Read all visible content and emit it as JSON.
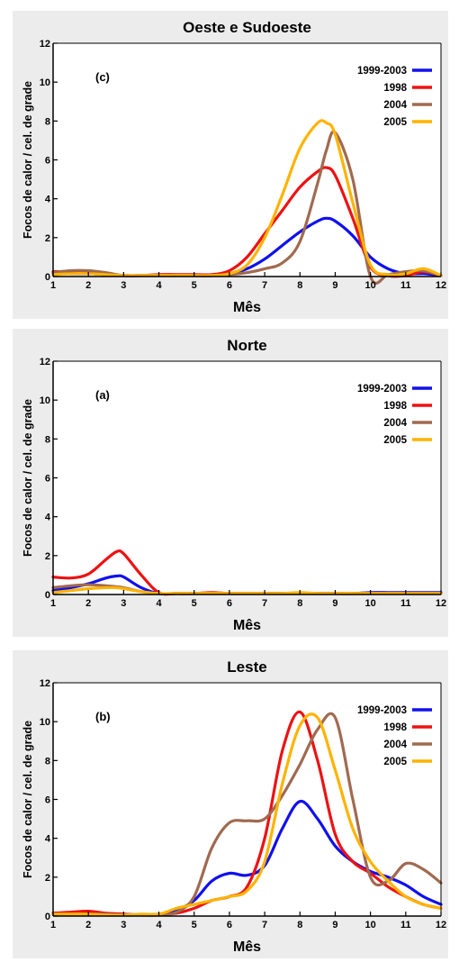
{
  "colors": {
    "1999-2003": "#1010ee",
    "1998": "#ee1111",
    "2004": "#a06a50",
    "2005": "#ffb300"
  },
  "chart_data": [
    {
      "type": "line",
      "title": "Oeste e Sudoeste",
      "panel_label": "(c)",
      "xlabel": "Mês",
      "ylabel": "Focos de calor / cel. de grade",
      "xlim": [
        1,
        12
      ],
      "ylim": [
        0,
        12
      ],
      "xticks": [
        1,
        2,
        3,
        4,
        5,
        6,
        7,
        8,
        9,
        10,
        11,
        12
      ],
      "yticks": [
        0,
        2,
        4,
        6,
        8,
        10,
        12
      ],
      "grid": false,
      "legend_position": "top-right",
      "x": [
        1,
        1.5,
        2,
        2.5,
        3,
        3.5,
        4,
        4.5,
        5,
        5.5,
        6,
        6.5,
        7,
        7.5,
        8,
        8.5,
        8.75,
        9,
        9.5,
        10,
        10.5,
        11,
        11.5,
        12
      ],
      "series": [
        {
          "name": "1999-2003",
          "values": [
            0.15,
            0.15,
            0.15,
            0.1,
            0.05,
            0.05,
            0.05,
            0.05,
            0.05,
            0.05,
            0.15,
            0.4,
            0.9,
            1.6,
            2.3,
            2.85,
            3.0,
            2.85,
            2.1,
            1.0,
            0.4,
            0.15,
            0.15,
            0.05
          ]
        },
        {
          "name": "1998",
          "values": [
            0.25,
            0.25,
            0.2,
            0.1,
            0.05,
            0.05,
            0.1,
            0.1,
            0.1,
            0.1,
            0.3,
            1.0,
            2.2,
            3.4,
            4.6,
            5.4,
            5.6,
            5.2,
            3.0,
            0.5,
            0.05,
            0.05,
            0.25,
            0.05
          ]
        },
        {
          "name": "2004",
          "values": [
            0.2,
            0.3,
            0.3,
            0.2,
            0.05,
            0.05,
            0.05,
            0.05,
            0.05,
            0.05,
            0.1,
            0.2,
            0.4,
            0.7,
            1.8,
            4.8,
            6.5,
            7.4,
            5.0,
            0.0,
            0.1,
            0.25,
            0.3,
            0.05
          ]
        },
        {
          "name": "2005",
          "values": [
            0.1,
            0.15,
            0.15,
            0.1,
            0.05,
            0.05,
            0.05,
            0.05,
            0.05,
            0.05,
            0.15,
            0.6,
            2.0,
            4.2,
            6.6,
            7.9,
            7.9,
            7.3,
            3.8,
            0.6,
            0.1,
            0.15,
            0.4,
            0.05
          ]
        }
      ]
    },
    {
      "type": "line",
      "title": "Norte",
      "panel_label": "(a)",
      "xlabel": "Mês",
      "ylabel": "Focos de calor / cel. de grade",
      "xlim": [
        1,
        12
      ],
      "ylim": [
        0,
        12
      ],
      "xticks": [
        1,
        2,
        3,
        4,
        5,
        6,
        7,
        8,
        9,
        10,
        11,
        12
      ],
      "yticks": [
        0,
        2,
        4,
        6,
        8,
        10,
        12
      ],
      "grid": false,
      "legend_position": "top-right",
      "x": [
        1,
        1.5,
        2,
        2.5,
        2.8,
        3,
        3.5,
        4,
        4.5,
        5,
        5.5,
        6,
        6.5,
        7,
        7.5,
        8,
        8.5,
        9,
        9.5,
        10,
        10.5,
        11,
        11.5,
        12
      ],
      "series": [
        {
          "name": "1999-2003",
          "values": [
            0.2,
            0.35,
            0.55,
            0.85,
            0.95,
            0.9,
            0.35,
            0.05,
            0.05,
            0.05,
            0.05,
            0.05,
            0.05,
            0.05,
            0.05,
            0.05,
            0.05,
            0.05,
            0.05,
            0.1,
            0.1,
            0.1,
            0.1,
            0.1
          ]
        },
        {
          "name": "1998",
          "values": [
            0.9,
            0.85,
            1.05,
            1.8,
            2.2,
            2.1,
            1.0,
            0.1,
            0.05,
            0.05,
            0.1,
            0.05,
            0.05,
            0.05,
            0.05,
            0.05,
            0.05,
            0.05,
            0.05,
            0.05,
            0.05,
            0.05,
            0.05,
            0.05
          ]
        },
        {
          "name": "2004",
          "values": [
            0.35,
            0.45,
            0.5,
            0.45,
            0.4,
            0.35,
            0.15,
            0.05,
            0.05,
            0.05,
            0.05,
            0.05,
            0.05,
            0.05,
            0.05,
            0.05,
            0.05,
            0.05,
            0.05,
            0.05,
            0.05,
            0.05,
            0.05,
            0.05
          ]
        },
        {
          "name": "2005",
          "values": [
            0.1,
            0.2,
            0.3,
            0.35,
            0.35,
            0.3,
            0.15,
            0.05,
            0.05,
            0.05,
            0.05,
            0.05,
            0.05,
            0.05,
            0.05,
            0.1,
            0.05,
            0.05,
            0.05,
            0.05,
            0.05,
            0.05,
            0.05,
            0.05
          ]
        }
      ]
    },
    {
      "type": "line",
      "title": "Leste",
      "panel_label": "(b)",
      "xlabel": "Mês",
      "ylabel": "Focos de calor / cel. de grade",
      "xlim": [
        1,
        12
      ],
      "ylim": [
        0,
        12
      ],
      "xticks": [
        1,
        2,
        3,
        4,
        5,
        6,
        7,
        8,
        9,
        10,
        11,
        12
      ],
      "yticks": [
        0,
        2,
        4,
        6,
        8,
        10,
        12
      ],
      "grid": false,
      "legend_position": "top-right",
      "x": [
        1,
        1.5,
        2,
        2.5,
        3,
        3.5,
        4,
        4.5,
        5,
        5.5,
        6,
        6.5,
        7,
        7.5,
        8,
        8.5,
        9,
        9.5,
        10,
        10.5,
        11,
        11.5,
        12
      ],
      "series": [
        {
          "name": "1999-2003",
          "values": [
            0.1,
            0.15,
            0.15,
            0.1,
            0.1,
            0.05,
            0.1,
            0.3,
            0.8,
            1.8,
            2.2,
            2.1,
            2.6,
            4.5,
            5.9,
            5.0,
            3.6,
            2.8,
            2.3,
            2.0,
            1.6,
            1.0,
            0.6
          ]
        },
        {
          "name": "1998",
          "values": [
            0.15,
            0.2,
            0.25,
            0.15,
            0.1,
            0.05,
            0.1,
            0.15,
            0.4,
            0.8,
            1.0,
            1.5,
            4.0,
            8.5,
            10.5,
            8.0,
            4.2,
            2.8,
            2.2,
            1.5,
            1.0,
            0.6,
            0.4
          ]
        },
        {
          "name": "2004",
          "values": [
            0.1,
            0.1,
            0.1,
            0.1,
            0.05,
            0.05,
            0.05,
            0.2,
            1.0,
            3.5,
            4.8,
            4.9,
            5.0,
            6.2,
            7.8,
            9.6,
            10.2,
            6.0,
            2.0,
            1.8,
            2.7,
            2.4,
            1.7
          ]
        },
        {
          "name": "2005",
          "values": [
            0.1,
            0.1,
            0.1,
            0.05,
            0.05,
            0.1,
            0.1,
            0.4,
            0.6,
            0.8,
            1.0,
            1.3,
            2.8,
            6.8,
            9.8,
            10.2,
            7.5,
            4.5,
            2.8,
            1.8,
            1.0,
            0.6,
            0.4
          ]
        }
      ]
    }
  ]
}
